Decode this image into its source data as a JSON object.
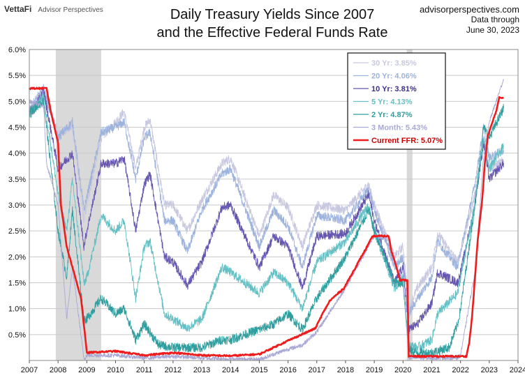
{
  "header": {
    "logo_brand": "VettaFi",
    "logo_sub": "Advisor Perspectives",
    "title_line1": "Daily Treasury Yields Since 2007",
    "title_line2": "and the Effective Federal Funds Rate",
    "source_site": "advisorperspectives.com",
    "source_line2": "Data through",
    "source_line3": "June 30, 2023"
  },
  "chart_data": {
    "type": "line",
    "title": "Daily Treasury Yields Since 2007 and the Effective Federal Funds Rate",
    "xlabel": "",
    "ylabel": "",
    "xlim": [
      2007,
      2024
    ],
    "ylim": [
      0,
      6
    ],
    "x_ticks": [
      "2007",
      "2008",
      "2009",
      "2010",
      "2011",
      "2012",
      "2013",
      "2014",
      "2015",
      "2016",
      "2017",
      "2018",
      "2019",
      "2020",
      "2021",
      "2022",
      "2023",
      "2024"
    ],
    "y_ticks": [
      "0.5%",
      "1.0%",
      "1.5%",
      "2.0%",
      "2.5%",
      "3.0%",
      "3.5%",
      "4.0%",
      "4.5%",
      "5.0%",
      "5.5%",
      "6.0%"
    ],
    "grid": true,
    "legend_position": "top-right",
    "recessions": [
      [
        2007.92,
        2009.5
      ],
      [
        2020.13,
        2020.33
      ]
    ],
    "series": [
      {
        "name": "30 Yr: 3.85%",
        "color": "#c8c8e0",
        "points": [
          [
            2007.0,
            4.8
          ],
          [
            2007.5,
            5.15
          ],
          [
            2008.0,
            4.4
          ],
          [
            2008.5,
            4.5
          ],
          [
            2008.9,
            2.7
          ],
          [
            2009.0,
            3.0
          ],
          [
            2009.5,
            4.3
          ],
          [
            2010.0,
            4.6
          ],
          [
            2010.3,
            4.8
          ],
          [
            2010.7,
            3.7
          ],
          [
            2011.0,
            4.5
          ],
          [
            2011.2,
            4.65
          ],
          [
            2011.7,
            3.0
          ],
          [
            2012.0,
            3.0
          ],
          [
            2012.5,
            2.5
          ],
          [
            2013.0,
            3.1
          ],
          [
            2013.7,
            3.8
          ],
          [
            2014.0,
            3.9
          ],
          [
            2015.0,
            2.4
          ],
          [
            2015.5,
            3.2
          ],
          [
            2016.0,
            2.95
          ],
          [
            2016.5,
            2.2
          ],
          [
            2017.0,
            3.0
          ],
          [
            2018.0,
            2.9
          ],
          [
            2018.8,
            3.4
          ],
          [
            2019.0,
            3.0
          ],
          [
            2019.7,
            2.0
          ],
          [
            2020.0,
            2.2
          ],
          [
            2020.2,
            1.0
          ],
          [
            2020.5,
            1.4
          ],
          [
            2021.0,
            1.8
          ],
          [
            2021.2,
            2.45
          ],
          [
            2021.9,
            1.9
          ],
          [
            2022.0,
            2.1
          ],
          [
            2022.5,
            3.2
          ],
          [
            2022.8,
            4.2
          ],
          [
            2023.0,
            3.7
          ],
          [
            2023.5,
            3.85
          ]
        ]
      },
      {
        "name": "20 Yr: 4.06%",
        "color": "#9db3dc",
        "points": [
          [
            2007.0,
            4.85
          ],
          [
            2007.5,
            5.25
          ],
          [
            2008.0,
            4.3
          ],
          [
            2008.5,
            4.6
          ],
          [
            2008.9,
            2.9
          ],
          [
            2009.5,
            4.4
          ],
          [
            2010.0,
            4.5
          ],
          [
            2010.3,
            4.6
          ],
          [
            2010.7,
            3.5
          ],
          [
            2011.0,
            4.3
          ],
          [
            2011.2,
            4.4
          ],
          [
            2011.7,
            2.7
          ],
          [
            2012.0,
            2.7
          ],
          [
            2012.5,
            2.1
          ],
          [
            2013.0,
            2.9
          ],
          [
            2013.7,
            3.6
          ],
          [
            2014.0,
            3.7
          ],
          [
            2015.0,
            2.2
          ],
          [
            2015.5,
            2.9
          ],
          [
            2016.0,
            2.6
          ],
          [
            2016.5,
            1.8
          ],
          [
            2017.0,
            2.8
          ],
          [
            2018.0,
            2.7
          ],
          [
            2018.8,
            3.3
          ],
          [
            2019.0,
            2.9
          ],
          [
            2019.7,
            1.8
          ],
          [
            2020.0,
            2.0
          ],
          [
            2020.2,
            0.9
          ],
          [
            2020.5,
            1.2
          ],
          [
            2021.0,
            1.6
          ],
          [
            2021.2,
            2.3
          ],
          [
            2021.9,
            1.8
          ],
          [
            2022.0,
            2.1
          ],
          [
            2022.5,
            3.4
          ],
          [
            2022.8,
            4.5
          ],
          [
            2023.0,
            3.9
          ],
          [
            2023.5,
            4.06
          ]
        ]
      },
      {
        "name": "10 Yr: 3.81%",
        "color": "#6656b0",
        "points": [
          [
            2007.0,
            4.7
          ],
          [
            2007.5,
            5.2
          ],
          [
            2008.0,
            3.7
          ],
          [
            2008.5,
            4.0
          ],
          [
            2008.9,
            2.2
          ],
          [
            2009.0,
            2.5
          ],
          [
            2009.5,
            3.8
          ],
          [
            2010.0,
            3.8
          ],
          [
            2010.3,
            3.9
          ],
          [
            2010.7,
            2.5
          ],
          [
            2011.0,
            3.4
          ],
          [
            2011.2,
            3.6
          ],
          [
            2011.7,
            2.0
          ],
          [
            2012.0,
            1.9
          ],
          [
            2012.5,
            1.45
          ],
          [
            2013.0,
            1.9
          ],
          [
            2013.7,
            2.95
          ],
          [
            2014.0,
            3.0
          ],
          [
            2015.0,
            1.8
          ],
          [
            2015.5,
            2.4
          ],
          [
            2016.0,
            2.2
          ],
          [
            2016.5,
            1.4
          ],
          [
            2017.0,
            2.4
          ],
          [
            2018.0,
            2.45
          ],
          [
            2018.8,
            3.2
          ],
          [
            2019.0,
            2.7
          ],
          [
            2019.7,
            1.5
          ],
          [
            2020.0,
            1.8
          ],
          [
            2020.2,
            0.6
          ],
          [
            2020.5,
            0.7
          ],
          [
            2021.0,
            1.1
          ],
          [
            2021.2,
            1.7
          ],
          [
            2021.9,
            1.5
          ],
          [
            2022.0,
            1.7
          ],
          [
            2022.5,
            3.0
          ],
          [
            2022.8,
            4.2
          ],
          [
            2023.0,
            3.5
          ],
          [
            2023.5,
            3.81
          ]
        ]
      },
      {
        "name": "5 Yr: 4.13%",
        "color": "#64c0c4",
        "points": [
          [
            2007.0,
            4.7
          ],
          [
            2007.5,
            5.1
          ],
          [
            2008.0,
            3.2
          ],
          [
            2008.3,
            2.5
          ],
          [
            2008.5,
            3.5
          ],
          [
            2008.9,
            1.5
          ],
          [
            2009.0,
            1.6
          ],
          [
            2009.5,
            2.8
          ],
          [
            2010.0,
            2.5
          ],
          [
            2010.3,
            2.7
          ],
          [
            2010.7,
            1.2
          ],
          [
            2011.0,
            2.2
          ],
          [
            2011.2,
            2.3
          ],
          [
            2011.7,
            0.9
          ],
          [
            2012.0,
            0.8
          ],
          [
            2012.5,
            0.62
          ],
          [
            2013.0,
            0.8
          ],
          [
            2013.7,
            1.8
          ],
          [
            2014.0,
            1.7
          ],
          [
            2015.0,
            1.3
          ],
          [
            2015.5,
            1.7
          ],
          [
            2016.0,
            1.5
          ],
          [
            2016.5,
            1.0
          ],
          [
            2017.0,
            1.9
          ],
          [
            2018.0,
            2.3
          ],
          [
            2018.8,
            3.0
          ],
          [
            2019.0,
            2.5
          ],
          [
            2019.7,
            1.4
          ],
          [
            2020.0,
            1.6
          ],
          [
            2020.2,
            0.3
          ],
          [
            2020.5,
            0.25
          ],
          [
            2021.0,
            0.4
          ],
          [
            2021.2,
            0.9
          ],
          [
            2021.9,
            1.3
          ],
          [
            2022.0,
            1.6
          ],
          [
            2022.5,
            3.0
          ],
          [
            2022.8,
            4.3
          ],
          [
            2023.0,
            3.7
          ],
          [
            2023.5,
            4.13
          ]
        ]
      },
      {
        "name": "2 Yr: 4.87%",
        "color": "#2f9e9e",
        "points": [
          [
            2007.0,
            4.8
          ],
          [
            2007.5,
            5.0
          ],
          [
            2008.0,
            2.5
          ],
          [
            2008.3,
            1.6
          ],
          [
            2008.5,
            2.9
          ],
          [
            2008.9,
            0.8
          ],
          [
            2009.0,
            0.8
          ],
          [
            2009.5,
            1.2
          ],
          [
            2010.0,
            0.9
          ],
          [
            2010.3,
            1.0
          ],
          [
            2010.7,
            0.4
          ],
          [
            2011.0,
            0.7
          ],
          [
            2011.5,
            0.3
          ],
          [
            2012.0,
            0.25
          ],
          [
            2013.0,
            0.25
          ],
          [
            2013.7,
            0.4
          ],
          [
            2014.0,
            0.4
          ],
          [
            2015.0,
            0.6
          ],
          [
            2015.5,
            0.7
          ],
          [
            2016.0,
            0.9
          ],
          [
            2016.5,
            0.6
          ],
          [
            2017.0,
            1.2
          ],
          [
            2018.0,
            2.0
          ],
          [
            2018.8,
            2.9
          ],
          [
            2019.0,
            2.5
          ],
          [
            2019.7,
            1.5
          ],
          [
            2020.0,
            1.5
          ],
          [
            2020.2,
            0.2
          ],
          [
            2020.5,
            0.15
          ],
          [
            2021.0,
            0.15
          ],
          [
            2021.6,
            0.25
          ],
          [
            2021.9,
            0.7
          ],
          [
            2022.0,
            1.0
          ],
          [
            2022.5,
            3.0
          ],
          [
            2022.8,
            4.5
          ],
          [
            2023.0,
            4.3
          ],
          [
            2023.5,
            4.87
          ]
        ]
      },
      {
        "name": "3 Month: 5.43%",
        "color": "#a8a8d4",
        "points": [
          [
            2007.0,
            5.0
          ],
          [
            2007.5,
            4.9
          ],
          [
            2007.6,
            3.8
          ],
          [
            2008.0,
            3.0
          ],
          [
            2008.3,
            0.8
          ],
          [
            2008.5,
            1.8
          ],
          [
            2008.9,
            0.03
          ],
          [
            2009.0,
            0.1
          ],
          [
            2010.0,
            0.1
          ],
          [
            2011.0,
            0.05
          ],
          [
            2012.0,
            0.08
          ],
          [
            2013.0,
            0.05
          ],
          [
            2014.0,
            0.03
          ],
          [
            2015.0,
            0.02
          ],
          [
            2015.9,
            0.2
          ],
          [
            2016.5,
            0.3
          ],
          [
            2017.0,
            0.55
          ],
          [
            2018.0,
            1.4
          ],
          [
            2019.0,
            2.4
          ],
          [
            2019.4,
            2.35
          ],
          [
            2019.7,
            1.9
          ],
          [
            2020.0,
            1.55
          ],
          [
            2020.2,
            0.05
          ],
          [
            2021.0,
            0.05
          ],
          [
            2021.9,
            0.05
          ],
          [
            2022.0,
            0.1
          ],
          [
            2022.5,
            1.7
          ],
          [
            2022.8,
            3.9
          ],
          [
            2023.0,
            4.6
          ],
          [
            2023.5,
            5.43
          ]
        ]
      },
      {
        "name": "Current FFR: 5.07%",
        "color": "#ee1c1c",
        "points": [
          [
            2007.0,
            5.25
          ],
          [
            2007.6,
            5.25
          ],
          [
            2007.75,
            4.8
          ],
          [
            2008.0,
            4.2
          ],
          [
            2008.1,
            3.0
          ],
          [
            2008.3,
            2.2
          ],
          [
            2008.8,
            1.2
          ],
          [
            2009.0,
            0.15
          ],
          [
            2010.0,
            0.18
          ],
          [
            2011.0,
            0.1
          ],
          [
            2012.0,
            0.15
          ],
          [
            2013.0,
            0.1
          ],
          [
            2014.0,
            0.09
          ],
          [
            2015.0,
            0.12
          ],
          [
            2015.95,
            0.37
          ],
          [
            2016.95,
            0.62
          ],
          [
            2017.2,
            0.9
          ],
          [
            2017.45,
            1.15
          ],
          [
            2017.95,
            1.4
          ],
          [
            2018.2,
            1.65
          ],
          [
            2018.45,
            1.9
          ],
          [
            2018.7,
            2.15
          ],
          [
            2018.95,
            2.4
          ],
          [
            2019.5,
            2.4
          ],
          [
            2019.6,
            2.1
          ],
          [
            2019.75,
            1.85
          ],
          [
            2019.9,
            1.55
          ],
          [
            2020.15,
            1.55
          ],
          [
            2020.2,
            0.08
          ],
          [
            2021.0,
            0.08
          ],
          [
            2022.2,
            0.08
          ],
          [
            2022.3,
            0.33
          ],
          [
            2022.4,
            0.83
          ],
          [
            2022.5,
            1.58
          ],
          [
            2022.6,
            2.33
          ],
          [
            2022.75,
            3.08
          ],
          [
            2022.85,
            3.83
          ],
          [
            2022.95,
            4.33
          ],
          [
            2023.1,
            4.58
          ],
          [
            2023.25,
            4.83
          ],
          [
            2023.35,
            5.07
          ],
          [
            2023.5,
            5.07
          ]
        ]
      }
    ]
  }
}
